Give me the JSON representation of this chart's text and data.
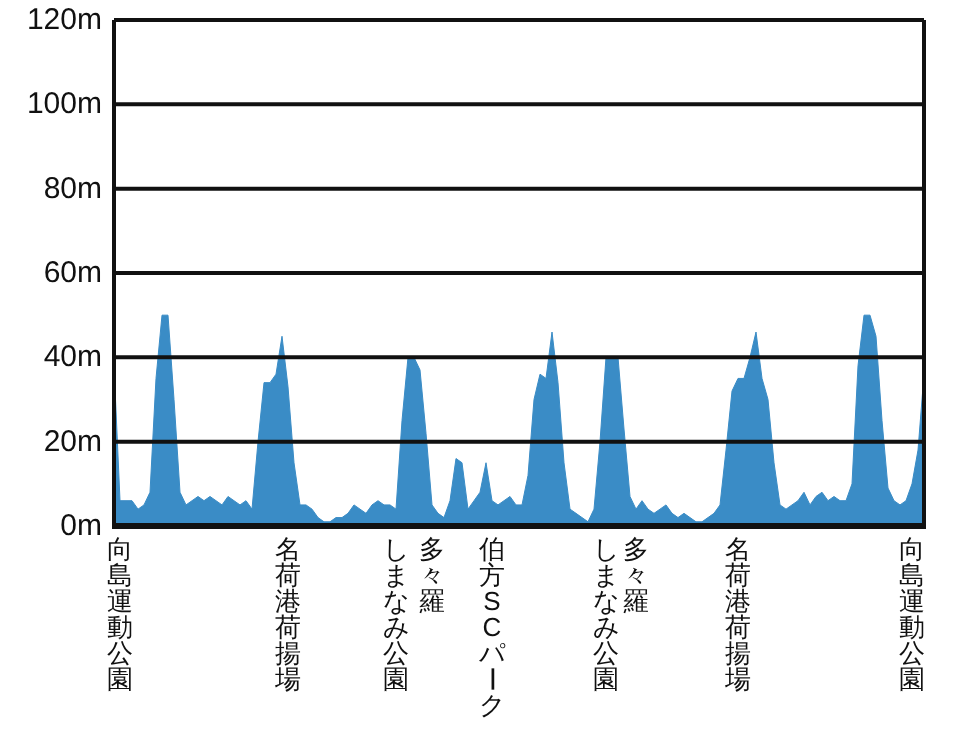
{
  "chart_data": {
    "type": "area",
    "categories": [
      null,
      "向島運動公園",
      null,
      null,
      null,
      null,
      null,
      null,
      null,
      null,
      null,
      null,
      null,
      null,
      null,
      null,
      null,
      null,
      null,
      null,
      null,
      null,
      null,
      null,
      null,
      null,
      null,
      null,
      null,
      "名荷港荷揚場",
      null,
      null,
      null,
      null,
      null,
      null,
      null,
      null,
      null,
      null,
      null,
      null,
      null,
      null,
      null,
      null,
      null,
      "しまなみ公園",
      null,
      null,
      null,
      null,
      null,
      "多々羅",
      null,
      null,
      null,
      null,
      null,
      null,
      null,
      null,
      null,
      "伯方SCパーク",
      null,
      null,
      null,
      null,
      null,
      null,
      null,
      null,
      null,
      null,
      null,
      null,
      null,
      null,
      null,
      null,
      null,
      null,
      "しまなみ公園",
      null,
      null,
      null,
      null,
      "多々羅",
      null,
      null,
      null,
      null,
      null,
      null,
      null,
      null,
      null,
      null,
      null,
      null,
      null,
      null,
      null,
      null,
      "名荷港荷揚場",
      null,
      null,
      null,
      null,
      null,
      null,
      null,
      null,
      null,
      null,
      null,
      null,
      null,
      null,
      null,
      null,
      null,
      null,
      null,
      null,
      null,
      null,
      null,
      null,
      null,
      null,
      null,
      null,
      "向島運動公園",
      null,
      null
    ],
    "values": [
      38,
      6,
      6,
      6,
      4,
      5,
      8,
      35,
      50,
      50,
      30,
      8,
      5,
      6,
      7,
      6,
      7,
      6,
      5,
      7,
      6,
      5,
      6,
      4,
      20,
      34,
      34,
      36,
      45,
      33,
      15,
      5,
      5,
      4,
      2,
      1,
      1,
      2,
      2,
      3,
      5,
      4,
      3,
      5,
      6,
      5,
      5,
      4,
      25,
      40,
      40,
      37,
      22,
      5,
      3,
      2,
      6,
      16,
      15,
      4,
      6,
      8,
      15,
      6,
      5,
      6,
      7,
      5,
      5,
      12,
      30,
      36,
      35,
      46,
      34,
      15,
      4,
      3,
      2,
      1,
      4,
      20,
      40,
      40,
      40,
      23,
      7,
      4,
      6,
      4,
      3,
      4,
      5,
      3,
      2,
      3,
      2,
      1,
      1,
      2,
      3,
      5,
      18,
      32,
      35,
      35,
      40,
      46,
      35,
      30,
      15,
      5,
      4,
      5,
      6,
      8,
      5,
      7,
      8,
      6,
      7,
      6,
      6,
      10,
      38,
      50,
      50,
      45,
      25,
      9,
      6,
      5,
      6,
      10,
      18,
      36
    ],
    "color": "#3a8cc6",
    "ylim": [
      0,
      120
    ],
    "yticks": [
      {
        "value": 0,
        "label": "0m"
      },
      {
        "value": 20,
        "label": "20m"
      },
      {
        "value": 40,
        "label": "40m"
      },
      {
        "value": 60,
        "label": "60m"
      },
      {
        "value": 80,
        "label": "80m"
      },
      {
        "value": 100,
        "label": "100m"
      },
      {
        "value": 120,
        "label": "120m"
      }
    ],
    "grid": "y"
  }
}
